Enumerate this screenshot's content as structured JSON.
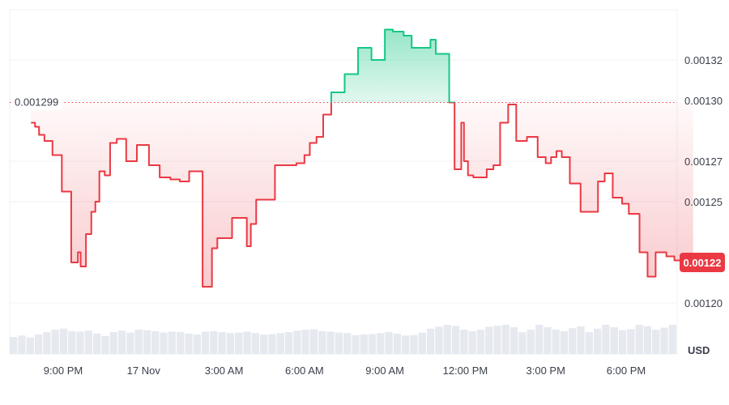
{
  "chart_data": {
    "type": "area",
    "currency": "USD",
    "ylim": [
      0.0012,
      0.00134
    ],
    "y_ticks": [
      "0.00120",
      "0.00125",
      "0.00127",
      "0.00130",
      "0.00132"
    ],
    "y_tick_values": [
      0.0012,
      0.00125,
      0.00127,
      0.0013,
      0.00132
    ],
    "x_ticks": [
      "9:00 PM",
      "17 Nov",
      "3:00 AM",
      "6:00 AM",
      "9:00 AM",
      "12:00 PM",
      "3:00 PM",
      "6:00 PM"
    ],
    "x_tick_hours": [
      3,
      6,
      9,
      12,
      15,
      18,
      21,
      24
    ],
    "x_range_hours": [
      1.8,
      26.5
    ],
    "reference_price": 0.001299,
    "reference_label": "0.001299",
    "current_price": 0.00122,
    "current_label": "0.00122",
    "colors": {
      "up": "#16c784",
      "down": "#ea3943",
      "grid": "#eff2f5",
      "volume": "#e6e9ef"
    },
    "series": [
      {
        "x": [
          1.8,
          1.95,
          2.1,
          2.3,
          2.6,
          2.95,
          3.3,
          3.55,
          3.65,
          3.85,
          4.05,
          4.2,
          4.35,
          4.55,
          4.75,
          5.0,
          5.35,
          5.75,
          6.2,
          6.6,
          7.0,
          7.35,
          7.7,
          8.2,
          8.55,
          8.75,
          9.3,
          9.85,
          10.0,
          10.2,
          10.5,
          10.9,
          11.3,
          11.7,
          12.0,
          12.2,
          12.45,
          12.7,
          13.0,
          13.5,
          14.0,
          14.5,
          15.0,
          15.3,
          15.5,
          15.7,
          16.0,
          16.4,
          16.7,
          16.9,
          17.1,
          17.4,
          17.6,
          17.85,
          17.95,
          18.1,
          18.3,
          18.5,
          18.8,
          19.05,
          19.3,
          19.6,
          19.9,
          20.3,
          20.7,
          21.0,
          21.2,
          21.4,
          21.6,
          21.9,
          22.3,
          22.6,
          22.95,
          23.2,
          23.5,
          23.85,
          24.1,
          24.5,
          24.8,
          25.1,
          25.5,
          25.8,
          26.1,
          26.4,
          26.5
        ],
        "y": [
          0.001289,
          0.001287,
          0.001283,
          0.00128,
          0.001273,
          0.001255,
          0.00122,
          0.001225,
          0.001218,
          0.001234,
          0.001245,
          0.00125,
          0.001265,
          0.001263,
          0.001279,
          0.001281,
          0.00127,
          0.001278,
          0.001268,
          0.001262,
          0.001261,
          0.00126,
          0.001265,
          0.001208,
          0.001227,
          0.001232,
          0.001242,
          0.001228,
          0.001239,
          0.001251,
          0.001251,
          0.001268,
          0.001268,
          0.001269,
          0.001273,
          0.001279,
          0.001282,
          0.001293,
          0.001304,
          0.001313,
          0.001326,
          0.00132,
          0.001335,
          0.001334,
          0.001334,
          0.001332,
          0.001326,
          0.001326,
          0.00133,
          0.001323,
          0.001323,
          0.001299,
          0.001266,
          0.001289,
          0.00127,
          0.001263,
          0.001262,
          0.001262,
          0.001266,
          0.001268,
          0.001289,
          0.001298,
          0.00128,
          0.001282,
          0.001272,
          0.001269,
          0.001272,
          0.001275,
          0.001272,
          0.001259,
          0.001245,
          0.001245,
          0.00126,
          0.001264,
          0.001252,
          0.001249,
          0.001244,
          0.001225,
          0.001213,
          0.001225,
          0.001223,
          0.001221,
          0.00122,
          0.00122,
          0.00122
        ]
      }
    ],
    "volume": [
      0.35,
      0.38,
      0.34,
      0.4,
      0.45,
      0.5,
      0.52,
      0.47,
      0.46,
      0.48,
      0.42,
      0.37,
      0.45,
      0.48,
      0.44,
      0.5,
      0.49,
      0.47,
      0.44,
      0.46,
      0.45,
      0.42,
      0.4,
      0.46,
      0.47,
      0.45,
      0.43,
      0.44,
      0.46,
      0.43,
      0.4,
      0.41,
      0.43,
      0.45,
      0.48,
      0.5,
      0.51,
      0.47,
      0.46,
      0.44,
      0.43,
      0.39,
      0.4,
      0.41,
      0.43,
      0.45,
      0.42,
      0.38,
      0.39,
      0.44,
      0.52,
      0.56,
      0.6,
      0.58,
      0.5,
      0.47,
      0.5,
      0.56,
      0.58,
      0.6,
      0.55,
      0.45,
      0.5,
      0.6,
      0.55,
      0.5,
      0.47,
      0.53,
      0.57,
      0.45,
      0.52,
      0.6,
      0.55,
      0.49,
      0.51,
      0.6,
      0.57,
      0.5,
      0.54,
      0.6
    ]
  }
}
